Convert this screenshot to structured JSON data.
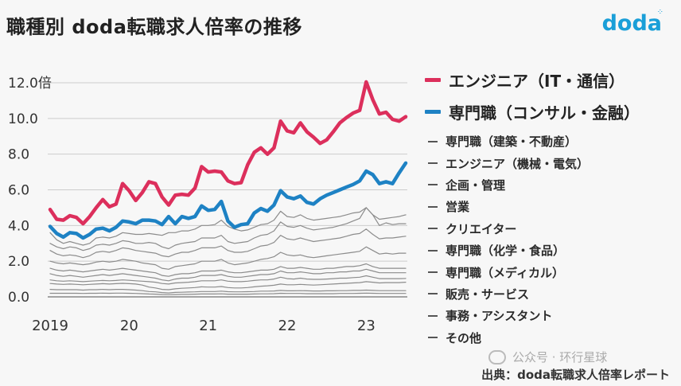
{
  "title": "職種別 doda転職求人倍率の推移",
  "logo": "doda",
  "source": "出典：doda転職求人倍率レポート",
  "watermark": "公众号 · 环行星球",
  "colors": {
    "engineer_it": "#dc2f5c",
    "specialist_consult": "#1e82c4",
    "other": "#8a8a8a"
  },
  "chart_data": {
    "type": "line",
    "title": "職種別 doda転職求人倍率の推移",
    "unit": "倍",
    "x_ticks": [
      "2019",
      "20",
      "21",
      "22",
      "23"
    ],
    "y_ticks": [
      "12.0倍",
      "10.0",
      "8.0",
      "6.0",
      "4.0",
      "2.0",
      "0.0"
    ],
    "ylim": [
      0,
      12.5
    ],
    "x_start": "2019-01",
    "series": [
      {
        "name": "エンジニア（IT・通信）",
        "highlight": true,
        "color": "#dc2f5c",
        "values": [
          4.9,
          4.35,
          4.3,
          4.55,
          4.45,
          4.1,
          4.5,
          5.0,
          5.45,
          5.05,
          5.2,
          6.35,
          5.95,
          5.4,
          5.85,
          6.45,
          6.35,
          5.6,
          5.15,
          5.7,
          5.75,
          5.7,
          6.1,
          7.3,
          7.0,
          7.05,
          7.0,
          6.5,
          6.35,
          6.4,
          7.4,
          8.1,
          8.35,
          8.0,
          8.35,
          9.85,
          9.3,
          9.2,
          9.75,
          9.25,
          8.95,
          8.6,
          8.8,
          9.25,
          9.75,
          10.05,
          10.3,
          10.45,
          12.05,
          11.05,
          10.25,
          10.35,
          9.95,
          9.85,
          10.1
        ]
      },
      {
        "name": "専門職（コンサル・金融）",
        "highlight": true,
        "color": "#1e82c4",
        "values": [
          3.95,
          3.55,
          3.35,
          3.6,
          3.55,
          3.3,
          3.5,
          3.8,
          3.85,
          3.7,
          3.9,
          4.25,
          4.2,
          4.1,
          4.3,
          4.3,
          4.25,
          4.05,
          4.5,
          4.1,
          4.5,
          4.4,
          4.5,
          5.1,
          4.85,
          4.9,
          5.35,
          4.25,
          3.9,
          4.05,
          4.1,
          4.7,
          4.95,
          4.8,
          5.15,
          5.95,
          5.6,
          5.5,
          5.65,
          5.3,
          5.2,
          5.5,
          5.7,
          5.85,
          6.0,
          6.15,
          6.3,
          6.5,
          7.05,
          6.85,
          6.35,
          6.45,
          6.35,
          6.95,
          7.5
        ]
      },
      {
        "name": "専門職（建築・不動産）",
        "highlight": false,
        "color": "#888",
        "values": [
          3.6,
          3.2,
          3.0,
          3.1,
          3.0,
          2.9,
          3.0,
          3.3,
          3.35,
          3.3,
          3.4,
          3.6,
          3.55,
          3.5,
          3.5,
          3.55,
          3.5,
          3.45,
          3.6,
          3.6,
          3.7,
          3.7,
          3.8,
          4.0,
          4.0,
          4.05,
          4.3,
          3.95,
          3.8,
          3.7,
          3.75,
          3.9,
          4.05,
          4.1,
          4.3,
          4.8,
          4.5,
          4.45,
          4.6,
          4.4,
          4.3,
          4.35,
          4.4,
          4.45,
          4.5,
          4.6,
          4.7,
          4.75,
          5.0,
          4.6,
          4.35,
          4.4,
          4.45,
          4.5,
          4.6
        ]
      },
      {
        "name": "エンジニア（機械・電気）",
        "highlight": false,
        "color": "#888",
        "values": [
          3.0,
          2.8,
          2.7,
          2.8,
          2.75,
          2.6,
          2.7,
          2.9,
          2.95,
          2.9,
          3.0,
          3.15,
          3.1,
          3.0,
          3.0,
          3.05,
          3.0,
          2.8,
          2.7,
          2.9,
          3.0,
          3.05,
          3.1,
          3.3,
          3.3,
          3.3,
          3.45,
          3.1,
          3.0,
          3.05,
          3.1,
          3.3,
          3.45,
          3.5,
          3.7,
          4.2,
          3.95,
          3.9,
          4.0,
          3.85,
          3.75,
          3.8,
          3.85,
          3.9,
          4.0,
          4.1,
          4.25,
          4.4,
          5.0,
          4.6,
          4.0,
          4.15,
          4.05,
          4.1,
          4.1
        ]
      },
      {
        "name": "企画・管理",
        "highlight": false,
        "color": "#888",
        "values": [
          2.6,
          2.4,
          2.3,
          2.35,
          2.3,
          2.2,
          2.3,
          2.5,
          2.55,
          2.5,
          2.6,
          2.75,
          2.7,
          2.6,
          2.55,
          2.5,
          2.45,
          2.3,
          2.25,
          2.4,
          2.5,
          2.5,
          2.6,
          2.75,
          2.75,
          2.75,
          2.85,
          2.6,
          2.5,
          2.5,
          2.55,
          2.7,
          2.85,
          2.9,
          3.05,
          3.45,
          3.25,
          3.2,
          3.3,
          3.2,
          3.1,
          3.15,
          3.2,
          3.25,
          3.3,
          3.4,
          3.5,
          3.55,
          3.8,
          3.5,
          3.25,
          3.3,
          3.3,
          3.35,
          3.4
        ]
      },
      {
        "name": "営業",
        "highlight": false,
        "color": "#888",
        "values": [
          2.0,
          1.9,
          1.85,
          1.9,
          1.85,
          1.8,
          1.85,
          1.95,
          2.0,
          1.95,
          2.0,
          2.1,
          2.05,
          2.0,
          1.9,
          1.85,
          1.8,
          1.6,
          1.55,
          1.7,
          1.75,
          1.8,
          1.85,
          2.0,
          2.0,
          2.0,
          2.1,
          1.9,
          1.8,
          1.85,
          1.9,
          2.0,
          2.1,
          2.15,
          2.25,
          2.5,
          2.35,
          2.3,
          2.35,
          2.25,
          2.2,
          2.25,
          2.3,
          2.35,
          2.4,
          2.45,
          2.5,
          2.55,
          2.8,
          2.6,
          2.4,
          2.45,
          2.4,
          2.45,
          2.45
        ]
      },
      {
        "name": "クリエイター",
        "highlight": false,
        "color": "#888",
        "values": [
          1.6,
          1.5,
          1.45,
          1.5,
          1.45,
          1.4,
          1.45,
          1.5,
          1.55,
          1.5,
          1.55,
          1.6,
          1.55,
          1.5,
          1.45,
          1.4,
          1.35,
          1.2,
          1.15,
          1.25,
          1.3,
          1.3,
          1.35,
          1.45,
          1.45,
          1.45,
          1.5,
          1.4,
          1.35,
          1.35,
          1.4,
          1.45,
          1.5,
          1.5,
          1.55,
          1.7,
          1.6,
          1.6,
          1.65,
          1.6,
          1.55,
          1.55,
          1.6,
          1.6,
          1.65,
          1.7,
          1.7,
          1.75,
          1.85,
          1.7,
          1.6,
          1.6,
          1.6,
          1.6,
          1.6
        ]
      },
      {
        "name": "専門職（化学・食品）",
        "highlight": false,
        "color": "#888",
        "values": [
          1.3,
          1.2,
          1.15,
          1.2,
          1.15,
          1.1,
          1.15,
          1.2,
          1.25,
          1.2,
          1.25,
          1.3,
          1.25,
          1.2,
          1.15,
          1.1,
          1.05,
          0.95,
          0.9,
          1.0,
          1.05,
          1.05,
          1.1,
          1.2,
          1.2,
          1.2,
          1.25,
          1.15,
          1.1,
          1.1,
          1.15,
          1.2,
          1.25,
          1.25,
          1.3,
          1.45,
          1.35,
          1.35,
          1.4,
          1.35,
          1.3,
          1.3,
          1.35,
          1.35,
          1.4,
          1.4,
          1.45,
          1.45,
          1.55,
          1.45,
          1.35,
          1.35,
          1.35,
          1.35,
          1.35
        ]
      },
      {
        "name": "専門職（メディカル）",
        "highlight": false,
        "color": "#888",
        "values": [
          0.95,
          0.9,
          0.88,
          0.9,
          0.88,
          0.85,
          0.88,
          0.9,
          0.92,
          0.9,
          0.92,
          0.95,
          0.93,
          0.9,
          0.88,
          0.85,
          0.82,
          0.75,
          0.72,
          0.78,
          0.8,
          0.82,
          0.85,
          0.9,
          0.9,
          0.9,
          0.95,
          0.88,
          0.85,
          0.85,
          0.88,
          0.92,
          0.95,
          0.95,
          1.0,
          1.1,
          1.02,
          1.0,
          1.05,
          1.0,
          0.98,
          0.98,
          1.0,
          1.02,
          1.05,
          1.05,
          1.08,
          1.1,
          1.18,
          1.1,
          1.02,
          1.02,
          1.02,
          1.02,
          1.03
        ]
      },
      {
        "name": "販売・サービス",
        "highlight": false,
        "color": "#888",
        "values": [
          0.75,
          0.72,
          0.7,
          0.72,
          0.7,
          0.68,
          0.7,
          0.72,
          0.74,
          0.72,
          0.74,
          0.76,
          0.74,
          0.72,
          0.66,
          0.55,
          0.5,
          0.42,
          0.4,
          0.45,
          0.48,
          0.5,
          0.52,
          0.56,
          0.55,
          0.55,
          0.58,
          0.52,
          0.5,
          0.5,
          0.52,
          0.56,
          0.6,
          0.62,
          0.65,
          0.72,
          0.68,
          0.68,
          0.7,
          0.68,
          0.66,
          0.68,
          0.7,
          0.72,
          0.74,
          0.76,
          0.78,
          0.8,
          0.85,
          0.82,
          0.78,
          0.8,
          0.8,
          0.8,
          0.82
        ]
      },
      {
        "name": "事務・アシスタント",
        "highlight": false,
        "color": "#888",
        "values": [
          0.42,
          0.4,
          0.4,
          0.4,
          0.4,
          0.38,
          0.4,
          0.4,
          0.42,
          0.4,
          0.42,
          0.42,
          0.4,
          0.38,
          0.35,
          0.3,
          0.28,
          0.24,
          0.22,
          0.25,
          0.26,
          0.27,
          0.28,
          0.3,
          0.3,
          0.3,
          0.32,
          0.29,
          0.28,
          0.28,
          0.29,
          0.3,
          0.32,
          0.32,
          0.33,
          0.36,
          0.34,
          0.34,
          0.35,
          0.34,
          0.33,
          0.33,
          0.34,
          0.34,
          0.35,
          0.35,
          0.36,
          0.36,
          0.38,
          0.36,
          0.35,
          0.35,
          0.35,
          0.35,
          0.35
        ]
      },
      {
        "name": "その他",
        "highlight": false,
        "color": "#888",
        "values": [
          0.2,
          0.2,
          0.2,
          0.2,
          0.2,
          0.19,
          0.2,
          0.2,
          0.21,
          0.2,
          0.21,
          0.21,
          0.2,
          0.19,
          0.18,
          0.16,
          0.15,
          0.13,
          0.12,
          0.13,
          0.14,
          0.14,
          0.15,
          0.16,
          0.16,
          0.16,
          0.17,
          0.15,
          0.15,
          0.15,
          0.15,
          0.16,
          0.17,
          0.17,
          0.18,
          0.2,
          0.19,
          0.19,
          0.19,
          0.18,
          0.18,
          0.18,
          0.18,
          0.18,
          0.19,
          0.19,
          0.19,
          0.2,
          0.21,
          0.2,
          0.19,
          0.19,
          0.19,
          0.19,
          0.19
        ]
      }
    ]
  }
}
